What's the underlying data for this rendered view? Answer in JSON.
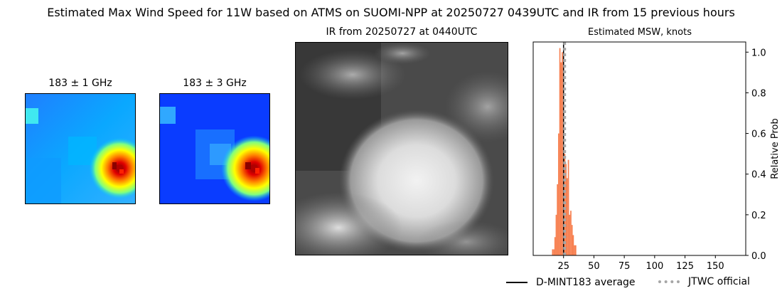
{
  "suptitle": "Estimated Max Wind Speed for 11W based on ATMS on SUOMI-NPP at 20250727 0439UTC and IR from 15 previous hours",
  "panels": {
    "mw1_title": "183 ± 1 GHz",
    "mw3_title": "183 ± 3 GHz",
    "ir_title": "IR from 20250727 at 0440UTC"
  },
  "colors": {
    "hist_bar": "#f77f4f",
    "mean_line": "#000000",
    "jtwc_line": "#a6a6a6"
  },
  "chart_data": {
    "type": "bar",
    "title": "Estimated MSW, knots",
    "xlabel": "",
    "ylabel": "Relative Prob",
    "xlim": [
      0,
      175
    ],
    "ylim": [
      0,
      1.05
    ],
    "xticks": [
      25,
      50,
      75,
      100,
      125,
      150
    ],
    "yticks": [
      0.0,
      0.2,
      0.4,
      0.6,
      0.8,
      1.0
    ],
    "ytick_labels": [
      "0.0",
      "0.2",
      "0.4",
      "0.6",
      "0.8",
      "1.0"
    ],
    "bin_width": 1,
    "bins": [
      {
        "x": 16,
        "y": 0.03
      },
      {
        "x": 17,
        "y": 0.03
      },
      {
        "x": 18,
        "y": 0.09
      },
      {
        "x": 19,
        "y": 0.2
      },
      {
        "x": 20,
        "y": 0.35
      },
      {
        "x": 21,
        "y": 0.6
      },
      {
        "x": 22,
        "y": 1.02
      },
      {
        "x": 23,
        "y": 0.95
      },
      {
        "x": 24,
        "y": 1.0
      },
      {
        "x": 25,
        "y": 0.95
      },
      {
        "x": 26,
        "y": 0.5
      },
      {
        "x": 27,
        "y": 0.45
      },
      {
        "x": 28,
        "y": 0.38
      },
      {
        "x": 29,
        "y": 0.47
      },
      {
        "x": 30,
        "y": 0.2
      },
      {
        "x": 31,
        "y": 0.22
      },
      {
        "x": 32,
        "y": 0.15
      },
      {
        "x": 33,
        "y": 0.1
      },
      {
        "x": 34,
        "y": 0.05
      },
      {
        "x": 35,
        "y": 0.05
      }
    ],
    "mean_value": 25,
    "jtwc_value": 25,
    "legend": [
      "D-MINT183 average",
      "JTWC official"
    ],
    "legend_position": "bottom-right"
  }
}
